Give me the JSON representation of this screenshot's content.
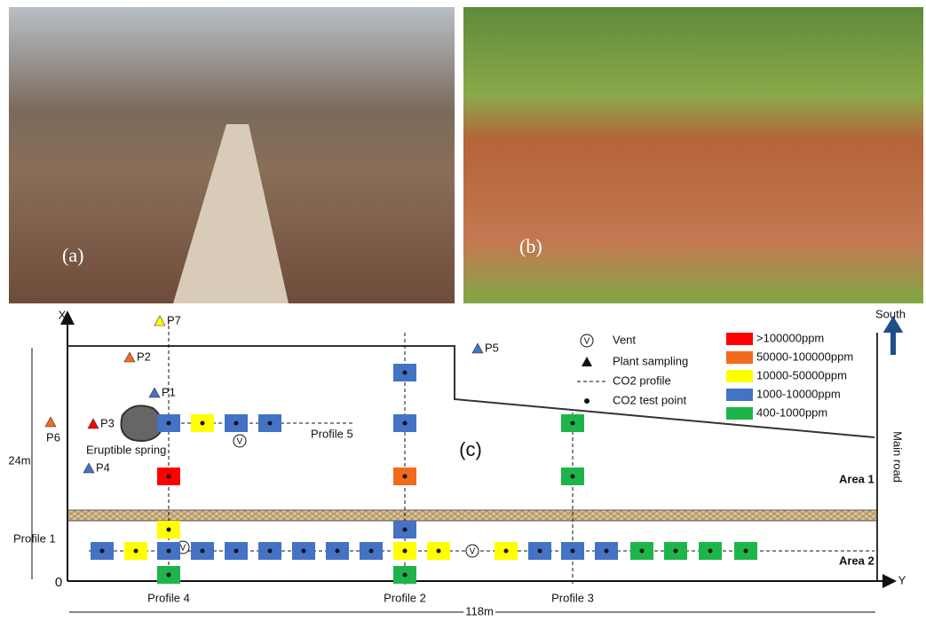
{
  "photos": [
    {
      "label": "(a)"
    },
    {
      "label": "(b)"
    }
  ],
  "diagram": {
    "label": "(c)",
    "x_axis": "X",
    "y_axis": "Y",
    "origin": "0",
    "width_label": "118m",
    "height_label": "24m",
    "north_label": "South",
    "road_label": "Main road",
    "spring_label": "Eruptible spring",
    "areas": [
      "Area 1",
      "Area 2"
    ],
    "profiles": [
      "Profile 1",
      "Profile 2",
      "Profile 3",
      "Profile 4",
      "Profile 5"
    ],
    "symbols": [
      "Vent",
      "Plant sampling",
      "CO2 profile",
      "CO2 test point"
    ],
    "vent_mark": "V",
    "classes": [
      {
        "label": ">100000ppm",
        "color": "#ff0000"
      },
      {
        "label": "50000-100000ppm",
        "color": "#f26b1d"
      },
      {
        "label": "10000-50000ppm",
        "color": "#ffff00"
      },
      {
        "label": "1000-10000ppm",
        "color": "#4472c4"
      },
      {
        "label": "400-1000ppm",
        "color": "#1db54a"
      }
    ],
    "plants": [
      {
        "label": "P1",
        "class": 3
      },
      {
        "label": "P2",
        "class": 1
      },
      {
        "label": "P3",
        "class": 0
      },
      {
        "label": "P4",
        "class": 3
      },
      {
        "label": "P5",
        "class": 3
      },
      {
        "label": "P6",
        "class": 1
      },
      {
        "label": "P7",
        "class": 2
      }
    ],
    "points": [
      {
        "class": 3
      },
      {
        "class": 2
      },
      {
        "class": 3
      },
      {
        "class": 3
      },
      {
        "class": 3
      },
      {
        "class": 3
      },
      {
        "class": 3
      },
      {
        "class": 3
      },
      {
        "class": 3
      },
      {
        "class": 2
      },
      {
        "class": 2
      },
      {
        "class": 2
      },
      {
        "class": 3
      },
      {
        "class": 3
      },
      {
        "class": 3
      },
      {
        "class": 4
      },
      {
        "class": 4
      },
      {
        "class": 4
      },
      {
        "class": 4
      },
      {
        "class": 3
      },
      {
        "class": 2
      },
      {
        "class": 3
      },
      {
        "class": 3
      },
      {
        "class": 0
      },
      {
        "class": 2
      },
      {
        "class": 4
      },
      {
        "class": 3
      },
      {
        "class": 3
      },
      {
        "class": 1
      },
      {
        "class": 3
      },
      {
        "class": 4
      },
      {
        "class": 4
      },
      {
        "class": 4
      }
    ]
  }
}
